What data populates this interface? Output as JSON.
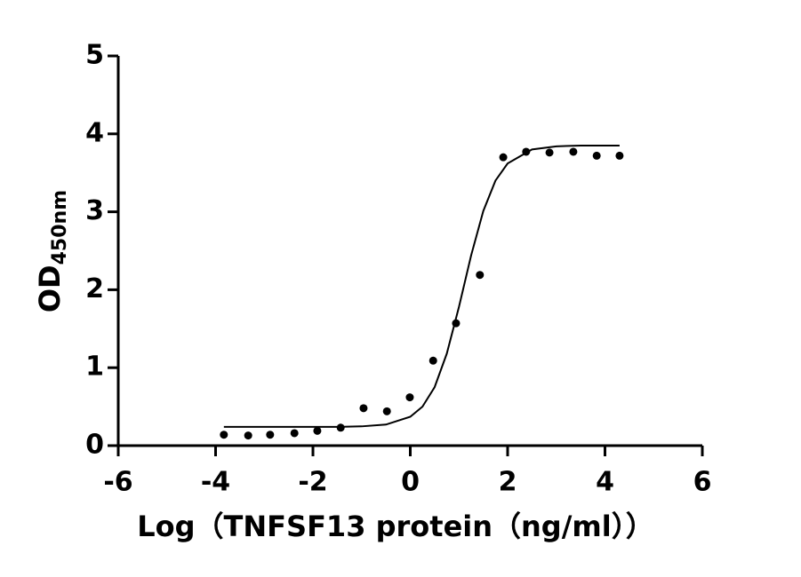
{
  "chart_data": {
    "type": "scatter",
    "xlabel": "Log（TNFSF13 protein（ng/ml））",
    "ylabel": "OD",
    "ylabel_subscript": "450nm",
    "xlim": [
      -6,
      6
    ],
    "xticks": [
      -6,
      -4,
      -2,
      0,
      2,
      4,
      6
    ],
    "ylim": [
      0,
      5
    ],
    "yticks": [
      0,
      1,
      2,
      3,
      4,
      5
    ],
    "series": [
      {
        "kind": "points",
        "color": "#000000",
        "x": [
          -3.83,
          -3.33,
          -2.88,
          -2.38,
          -1.91,
          -1.43,
          -0.96,
          -0.48,
          -0.01,
          0.47,
          0.94,
          1.43,
          1.91,
          2.38,
          2.86,
          3.35,
          3.83,
          4.3
        ],
        "values": [
          0.14,
          0.13,
          0.14,
          0.16,
          0.19,
          0.23,
          0.48,
          0.44,
          0.62,
          1.09,
          1.57,
          2.19,
          3.7,
          3.77,
          3.76,
          3.77,
          3.72,
          3.72
        ]
      },
      {
        "kind": "curve",
        "color": "#000000",
        "x": [
          -3.83,
          -3,
          -2.5,
          -2,
          -1.5,
          -1,
          -0.5,
          0,
          0.25,
          0.5,
          0.75,
          1,
          1.25,
          1.5,
          1.75,
          2,
          2.5,
          3,
          3.5,
          4,
          4.3
        ],
        "values": [
          0.24,
          0.24,
          0.24,
          0.24,
          0.24,
          0.247,
          0.27,
          0.37,
          0.5,
          0.75,
          1.18,
          1.78,
          2.44,
          3.01,
          3.4,
          3.62,
          3.8,
          3.84,
          3.85,
          3.85,
          3.85
        ]
      }
    ]
  }
}
